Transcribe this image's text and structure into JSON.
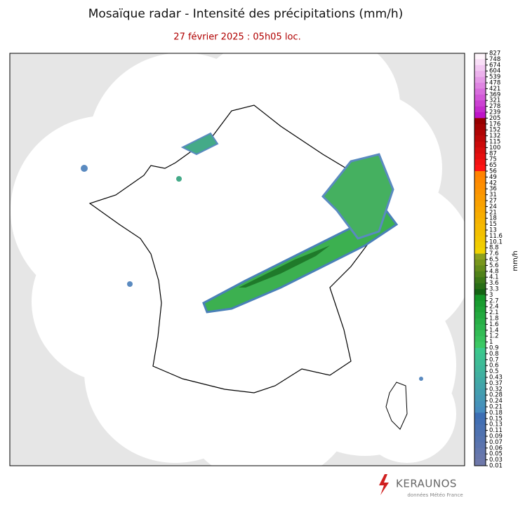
{
  "header": {
    "title": "Mosaïque radar - Intensité des précipitations (mm/h)",
    "subtitle": "27 février 2025 : 05h05 loc."
  },
  "colorbar": {
    "label": "mm/h",
    "ticks": [
      827,
      748,
      674,
      604,
      539,
      478,
      421,
      369,
      321,
      278,
      239,
      205,
      176,
      152,
      132,
      115,
      100,
      87,
      75,
      65,
      56,
      49,
      42,
      36,
      31,
      27,
      24,
      21,
      18,
      15,
      13,
      11.6,
      10.1,
      8.8,
      7.6,
      6.5,
      5.6,
      4.8,
      4.1,
      3.6,
      3.3,
      3,
      2.7,
      2.4,
      2.1,
      1.8,
      1.6,
      1.4,
      1.2,
      1,
      0.9,
      0.8,
      0.7,
      0.6,
      0.5,
      0.43,
      0.37,
      0.32,
      0.28,
      0.24,
      0.21,
      0.18,
      0.15,
      0.13,
      0.11,
      0.09,
      0.07,
      0.06,
      0.05,
      0.03,
      0.01
    ]
  },
  "footer": {
    "brand": "KERAUNOS",
    "credit": "données Météo France"
  }
}
